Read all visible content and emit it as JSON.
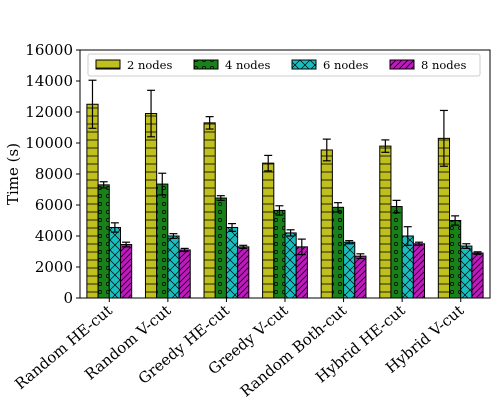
{
  "chart_data": {
    "type": "bar",
    "title": "",
    "xlabel": "",
    "ylabel": "Time (s)",
    "ylim": [
      0,
      16000
    ],
    "yticks": [
      "0",
      "2000",
      "4000",
      "6000",
      "8000",
      "10000",
      "12000",
      "14000",
      "16000"
    ],
    "legend_position": "top",
    "grid": false,
    "categories": [
      "Random HE-cut",
      "Random V-cut",
      "Greedy HE-cut",
      "Greedy V-cut",
      "Random Both-cut",
      "Hybrid HE-cut",
      "Hybrid V-cut"
    ],
    "series": [
      {
        "name": "2 nodes",
        "color": "#bfbf1e",
        "hatch": "horizontal-lines",
        "values": [
          12500,
          11900,
          11300,
          8700,
          9550,
          9800,
          10300
        ],
        "errors": [
          1550,
          1500,
          400,
          500,
          700,
          400,
          1800
        ]
      },
      {
        "name": "4 nodes",
        "color": "#1a801a",
        "hatch": "small-circles",
        "values": [
          7300,
          7350,
          6450,
          5650,
          5850,
          5900,
          5000
        ],
        "errors": [
          200,
          700,
          150,
          300,
          300,
          400,
          300
        ]
      },
      {
        "name": "6 nodes",
        "color": "#19bfbf",
        "hatch": "cross",
        "values": [
          4550,
          4000,
          4550,
          4200,
          3600,
          4000,
          3350
        ],
        "errors": [
          300,
          150,
          250,
          200,
          100,
          600,
          150
        ]
      },
      {
        "name": "8 nodes",
        "color": "#bf19bf",
        "hatch": "diagonal-lines",
        "values": [
          3450,
          3100,
          3300,
          3300,
          2700,
          3500,
          2900
        ],
        "errors": [
          150,
          100,
          100,
          500,
          150,
          100,
          80
        ]
      }
    ]
  }
}
